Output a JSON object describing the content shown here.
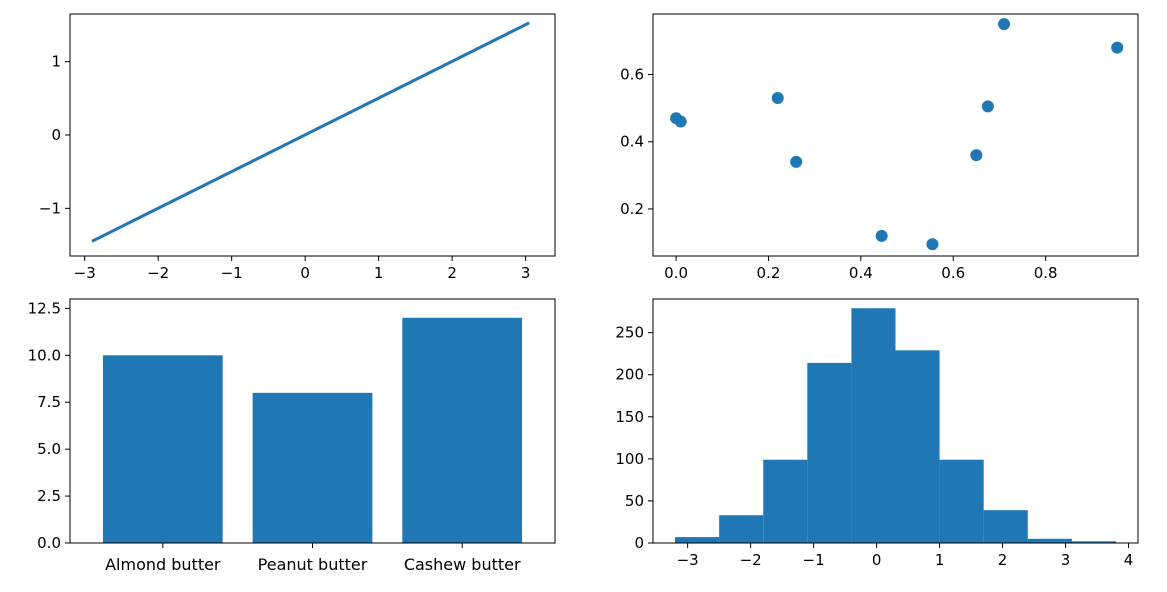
{
  "colors": {
    "series": "#1f77b4",
    "axes": "#000000",
    "background": "#ffffff"
  },
  "chart_data": [
    {
      "type": "line",
      "title": "",
      "xlabel": "",
      "ylabel": "",
      "xlim": [
        -3.2,
        3.4
      ],
      "ylim": [
        -1.65,
        1.65
      ],
      "x_ticks": [
        "−3",
        "−2",
        "−1",
        "0",
        "1",
        "2",
        "3"
      ],
      "x_tick_values": [
        -3,
        -2,
        -1,
        0,
        1,
        2,
        3
      ],
      "y_ticks": [
        "−1",
        "0",
        "1"
      ],
      "y_tick_values": [
        -1,
        0,
        1
      ],
      "series": [
        {
          "x": [
            -2.9,
            3.05
          ],
          "y": [
            -1.45,
            1.53
          ]
        }
      ]
    },
    {
      "type": "scatter",
      "title": "",
      "xlabel": "",
      "ylabel": "",
      "xlim": [
        -0.05,
        1.0
      ],
      "ylim": [
        0.06,
        0.78
      ],
      "x_ticks": [
        "0.0",
        "0.2",
        "0.4",
        "0.6",
        "0.8"
      ],
      "x_tick_values": [
        0.0,
        0.2,
        0.4,
        0.6,
        0.8
      ],
      "y_ticks": [
        "0.2",
        "0.4",
        "0.6"
      ],
      "y_tick_values": [
        0.2,
        0.4,
        0.6
      ],
      "series": [
        {
          "x": [
            0.0,
            0.01,
            0.22,
            0.26,
            0.445,
            0.555,
            0.65,
            0.675,
            0.71,
            0.955
          ],
          "y": [
            0.47,
            0.46,
            0.53,
            0.34,
            0.12,
            0.095,
            0.36,
            0.505,
            0.75,
            0.68
          ]
        }
      ]
    },
    {
      "type": "bar",
      "title": "",
      "xlabel": "",
      "ylabel": "",
      "ylim": [
        0,
        13.0
      ],
      "categories": [
        "Almond butter",
        "Peanut butter",
        "Cashew butter"
      ],
      "values": [
        10,
        8,
        12
      ],
      "y_ticks": [
        "0.0",
        "2.5",
        "5.0",
        "7.5",
        "10.0",
        "12.5"
      ],
      "y_tick_values": [
        0,
        2.5,
        5,
        7.5,
        10,
        12.5
      ]
    },
    {
      "type": "bar",
      "title": "",
      "xlabel": "",
      "ylabel": "",
      "xlim": [
        -3.55,
        4.15
      ],
      "ylim": [
        0,
        290
      ],
      "bin_edges": [
        -3.2,
        -2.5,
        -1.8,
        -1.1,
        -0.4,
        0.3,
        1.0,
        1.7,
        2.4,
        3.1,
        3.8
      ],
      "values": [
        7,
        33,
        99,
        214,
        279,
        229,
        99,
        39,
        5,
        2
      ],
      "x_ticks": [
        "−3",
        "−2",
        "−1",
        "0",
        "1",
        "2",
        "3",
        "4"
      ],
      "x_tick_values": [
        -3,
        -2,
        -1,
        0,
        1,
        2,
        3,
        4
      ],
      "y_ticks": [
        "0",
        "50",
        "100",
        "150",
        "200",
        "250"
      ],
      "y_tick_values": [
        0,
        50,
        100,
        150,
        200,
        250
      ]
    }
  ]
}
